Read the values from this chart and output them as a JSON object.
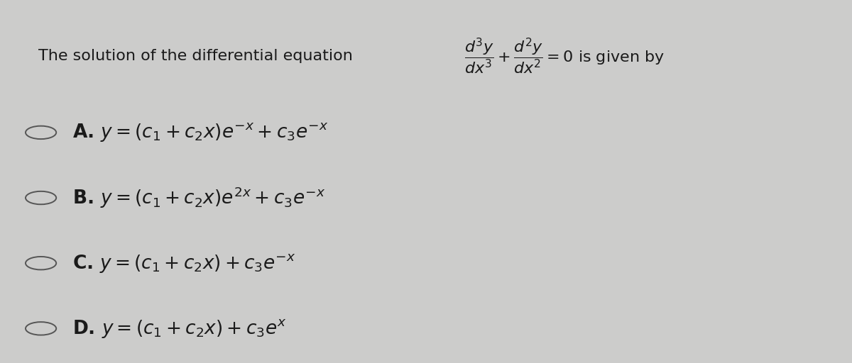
{
  "background_color": "#cccccb",
  "text_color": "#1a1a1a",
  "circle_color": "#555555",
  "header_left": "The solution of the differential equation",
  "header_eq": "$\\dfrac{d^3y}{dx^3}+\\dfrac{d^2y}{dx^2}=0$ is given by",
  "options": [
    "A. $y=(c_1+c_2x)e^{-x}+c_3e^{-x}$",
    "B. $y=(c_1+c_2x)e^{2x}+c_3e^{-x}$",
    "C. $y=(c_1+c_2x)+c_3e^{-x}$",
    "D. $y=(c_1+c_2x)+c_3e^{x}$"
  ],
  "fontsize_header": 16,
  "fontsize_options": 19,
  "fig_width": 12.0,
  "fig_height": 5.12,
  "dpi": 100
}
